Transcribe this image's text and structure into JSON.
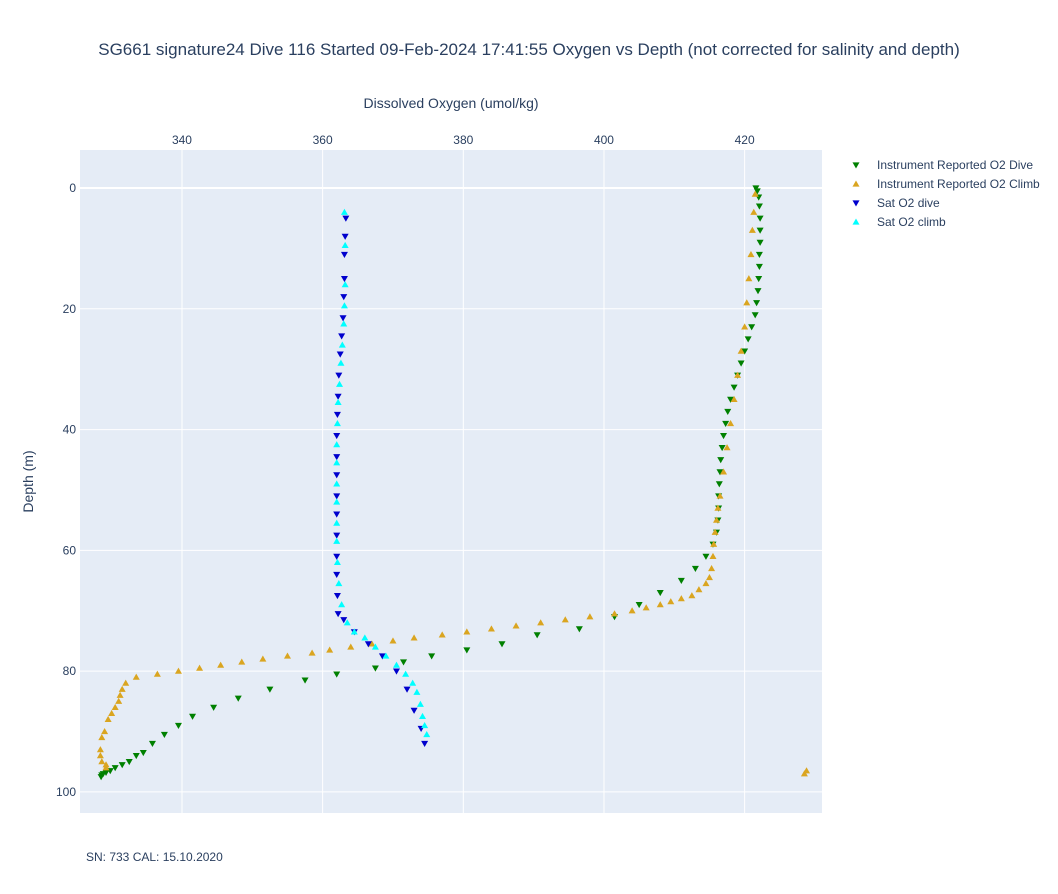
{
  "chart_data": {
    "type": "scatter",
    "title": "SG661 signature24 Dive 116 Started 09-Feb-2024 17:41:55  Oxygen vs Depth (not corrected for salinity and depth)",
    "xlabel": "Dissolved Oxygen (umol/kg)",
    "ylabel": "Depth (m)",
    "xlim": [
      325.5,
      431
    ],
    "ylim": [
      103.5,
      -6.3
    ],
    "y_reversed": true,
    "x_axis_position": "top",
    "x_ticks": [
      340,
      360,
      380,
      400,
      420
    ],
    "y_ticks": [
      0,
      20,
      40,
      60,
      80,
      100
    ],
    "grid": true,
    "legend_position": "top-right",
    "footnote": "SN: 733  CAL: 15.10.2020",
    "series": [
      {
        "name": "Instrument Reported O2 Dive",
        "marker": "triangle-down",
        "color": "#008000",
        "x": [
          421.6,
          421.8,
          422,
          422.1,
          422.2,
          422.2,
          422.2,
          422.1,
          422.1,
          422,
          421.9,
          421.7,
          421.5,
          421,
          420.5,
          420,
          419.5,
          419,
          418.5,
          418,
          417.6,
          417.3,
          417,
          416.8,
          416.6,
          416.5,
          416.4,
          416.3,
          416.3,
          416.2,
          416,
          415.5,
          414.5,
          413,
          411,
          408,
          405,
          401.5,
          396.5,
          390.5,
          385.5,
          380.5,
          375.5,
          371.5,
          367.5,
          362,
          357.5,
          352.5,
          348,
          344.5,
          341.5,
          339.5,
          337.5,
          335.8,
          334.5,
          333.5,
          332.5,
          331.5,
          330.5,
          329.8,
          329.2,
          328.8,
          328.6,
          328.5
        ],
        "y": [
          0,
          0.5,
          1.5,
          3,
          5,
          7,
          9,
          11,
          13,
          15,
          17,
          19,
          21,
          23,
          25,
          27,
          29,
          31,
          33,
          35,
          37,
          39,
          41,
          43,
          45,
          47,
          49,
          51,
          53,
          55,
          57,
          59,
          61,
          63,
          65,
          67,
          69,
          71,
          73,
          74,
          75.5,
          76.5,
          77.5,
          78.5,
          79.5,
          80.5,
          81.5,
          83,
          84.5,
          86,
          87.5,
          89,
          90.5,
          92,
          93.5,
          94,
          95,
          95.5,
          96,
          96.5,
          96.8,
          97,
          97.2,
          97.5
        ]
      },
      {
        "name": "Instrument Reported O2 Climb",
        "marker": "triangle-up",
        "color": "#DAA520",
        "x": [
          428.5,
          428.8,
          329.2,
          329.2,
          328.6,
          328.4,
          328.4,
          328.6,
          329,
          329.5,
          330,
          330.5,
          331,
          331.2,
          331.5,
          332,
          333.5,
          336.5,
          339.5,
          342.5,
          345.5,
          348.5,
          351.5,
          355,
          358.5,
          361,
          364,
          367,
          370,
          373,
          377,
          380.5,
          384,
          387.5,
          391,
          394.5,
          398,
          401.5,
          404,
          406,
          408,
          409.5,
          411,
          412.5,
          413.5,
          414.5,
          415,
          415.3,
          415.5,
          415.6,
          415.8,
          416,
          416.2,
          416.5,
          417,
          417.5,
          418,
          418.5,
          419,
          419.5,
          420,
          420.3,
          420.6,
          420.9,
          421.1,
          421.3,
          421.5
        ],
        "y": [
          97,
          96.5,
          96,
          95.5,
          95,
          94,
          93,
          91,
          90,
          88,
          87,
          86,
          85,
          84,
          83,
          82,
          81,
          80.5,
          80,
          79.5,
          79,
          78.5,
          78,
          77.5,
          77,
          76.5,
          76,
          75.5,
          75,
          74.5,
          74,
          73.5,
          73,
          72.5,
          72,
          71.5,
          71,
          70.5,
          70,
          69.5,
          69,
          68.5,
          68,
          67.5,
          66.5,
          65.5,
          64.5,
          63,
          61,
          59,
          57,
          55,
          53,
          51,
          47,
          43,
          39,
          35,
          31,
          27,
          23,
          19,
          15,
          11,
          7,
          4,
          1
        ]
      },
      {
        "name": "Sat O2 dive",
        "marker": "triangle-down",
        "color": "#0000CD",
        "x": [
          363.3,
          363.2,
          363.1,
          363.1,
          363,
          362.9,
          362.7,
          362.5,
          362.3,
          362.2,
          362.1,
          362,
          362,
          362,
          362,
          362,
          362,
          362,
          362,
          362.1,
          362.2,
          363,
          364.5,
          366.5,
          368.5,
          370.5,
          372,
          373,
          374,
          374.5
        ],
        "y": [
          5,
          8,
          11,
          15,
          18,
          21.5,
          24.5,
          27.5,
          31,
          34.5,
          37.5,
          41,
          44.5,
          47.5,
          51,
          54,
          57.5,
          61,
          64,
          67.5,
          70.5,
          71.5,
          73.5,
          75.5,
          77.5,
          80,
          83,
          86.5,
          89.5,
          92
        ]
      },
      {
        "name": "Sat O2 climb",
        "marker": "triangle-up",
        "color": "#00FFFF",
        "x": [
          374.8,
          374.5,
          374.2,
          373.9,
          373.4,
          372.8,
          371.8,
          370.5,
          369,
          367.5,
          366,
          364.5,
          363.5,
          362.7,
          362.3,
          362.1,
          362,
          362,
          362,
          362,
          362,
          362,
          362.1,
          362.2,
          362.4,
          362.6,
          362.8,
          363,
          363.1,
          363.2,
          363.2,
          363.1
        ],
        "y": [
          90.5,
          89,
          87.5,
          85.5,
          83.5,
          82,
          80.5,
          79,
          77.5,
          76,
          74.5,
          73.5,
          72,
          69,
          65.5,
          62,
          58.5,
          55.5,
          52,
          49,
          45.5,
          42.5,
          39,
          35.5,
          32.5,
          29,
          26,
          22.5,
          19.5,
          16,
          9.5,
          4
        ]
      }
    ]
  }
}
